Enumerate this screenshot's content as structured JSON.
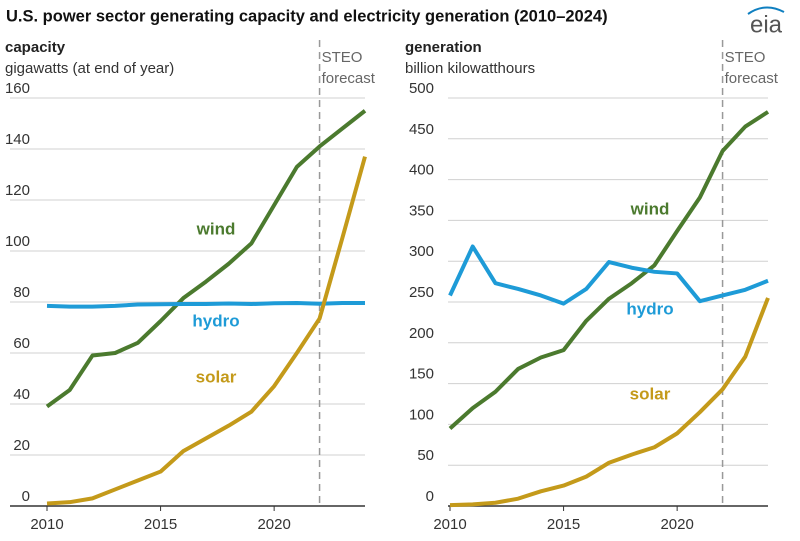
{
  "title": "U.S. power sector generating capacity and electricity generation (2010–2024)",
  "logo": "eia",
  "chart_data": [
    {
      "type": "line",
      "ylabel": "capacity",
      "subtitle": "gigawatts (at end of year)",
      "annotation": {
        "x": 2022,
        "lines": [
          "STEO",
          "forecast"
        ]
      },
      "x": [
        2010,
        2011,
        2012,
        2013,
        2014,
        2015,
        2016,
        2017,
        2018,
        2019,
        2020,
        2021,
        2022,
        2023,
        2024
      ],
      "xlim": [
        2010,
        2024
      ],
      "xticks": [
        2010,
        2015,
        2020
      ],
      "ylim": [
        0,
        160
      ],
      "yticks": [
        0,
        20,
        40,
        60,
        80,
        100,
        120,
        140,
        160
      ],
      "grid": true,
      "series": [
        {
          "name": "wind",
          "color": "#4b7a2e",
          "values": [
            39,
            45.5,
            59,
            60,
            64,
            72.5,
            81.5,
            88,
            95,
            103,
            118,
            133,
            141,
            148,
            155
          ]
        },
        {
          "name": "hydro",
          "color": "#1e9bd7",
          "values": [
            78.5,
            78.2,
            78.2,
            78.5,
            79,
            79.1,
            79.2,
            79.2,
            79.4,
            79.2,
            79.5,
            79.6,
            79.3,
            79.6,
            79.6
          ]
        },
        {
          "name": "solar",
          "color": "#c49a1a",
          "values": [
            1,
            1.5,
            3,
            6.5,
            10,
            13.5,
            21.5,
            26.5,
            31.5,
            37,
            47,
            60,
            73.5,
            105,
            137
          ]
        }
      ]
    },
    {
      "type": "line",
      "ylabel": "generation",
      "subtitle": "billion kilowatthours",
      "annotation": {
        "x": 2022,
        "lines": [
          "STEO",
          "forecast"
        ]
      },
      "x": [
        2010,
        2011,
        2012,
        2013,
        2014,
        2015,
        2016,
        2017,
        2018,
        2019,
        2020,
        2021,
        2022,
        2023,
        2024
      ],
      "xlim": [
        2010,
        2024
      ],
      "xticks": [
        2010,
        2015,
        2020
      ],
      "ylim": [
        0,
        500
      ],
      "yticks": [
        0,
        50,
        100,
        150,
        200,
        250,
        300,
        350,
        400,
        450,
        500
      ],
      "grid": true,
      "series": [
        {
          "name": "wind",
          "color": "#4b7a2e",
          "values": [
            95,
            120,
            140,
            168,
            182,
            191,
            227,
            254,
            273,
            295,
            337,
            378,
            435,
            465,
            483
          ]
        },
        {
          "name": "hydro",
          "color": "#1e9bd7",
          "values": [
            258,
            318,
            273,
            266,
            258,
            248,
            266,
            299,
            292,
            287,
            285,
            251,
            258,
            265,
            276
          ]
        },
        {
          "name": "solar",
          "color": "#c49a1a",
          "values": [
            1,
            2,
            4,
            9,
            18,
            25,
            36,
            53,
            63,
            72,
            89,
            115,
            143,
            183,
            255
          ]
        }
      ]
    }
  ]
}
